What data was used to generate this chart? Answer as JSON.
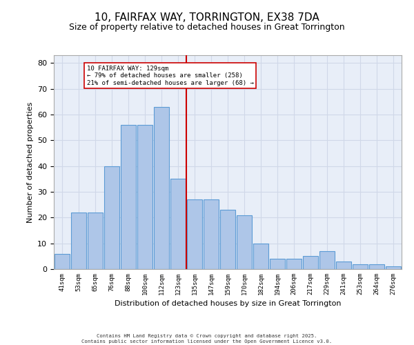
{
  "title": "10, FAIRFAX WAY, TORRINGTON, EX38 7DA",
  "subtitle": "Size of property relative to detached houses in Great Torrington",
  "xlabel": "Distribution of detached houses by size in Great Torrington",
  "ylabel": "Number of detached properties",
  "bar_labels": [
    "41sqm",
    "53sqm",
    "65sqm",
    "76sqm",
    "88sqm",
    "100sqm",
    "112sqm",
    "123sqm",
    "135sqm",
    "147sqm",
    "159sqm",
    "170sqm",
    "182sqm",
    "194sqm",
    "206sqm",
    "217sqm",
    "229sqm",
    "241sqm",
    "253sqm",
    "264sqm",
    "276sqm"
  ],
  "bar_values": [
    6,
    22,
    22,
    40,
    56,
    56,
    63,
    35,
    27,
    27,
    23,
    21,
    10,
    4,
    4,
    5,
    7,
    3,
    2,
    2,
    1
  ],
  "bar_color": "#aec6e8",
  "bar_edge_color": "#5b9bd5",
  "vline_color": "#cc0000",
  "annotation_title": "10 FAIRFAX WAY: 129sqm",
  "annotation_line1": "← 79% of detached houses are smaller (258)",
  "annotation_line2": "21% of semi-detached houses are larger (68) →",
  "annotation_box_color": "#ffffff",
  "annotation_box_edge": "#cc0000",
  "ylim": [
    0,
    83
  ],
  "yticks": [
    0,
    10,
    20,
    30,
    40,
    50,
    60,
    70,
    80
  ],
  "grid_color": "#d0d8e8",
  "background_color": "#e8eef8",
  "footer_line1": "Contains HM Land Registry data © Crown copyright and database right 2025.",
  "footer_line2": "Contains public sector information licensed under the Open Government Licence v3.0."
}
